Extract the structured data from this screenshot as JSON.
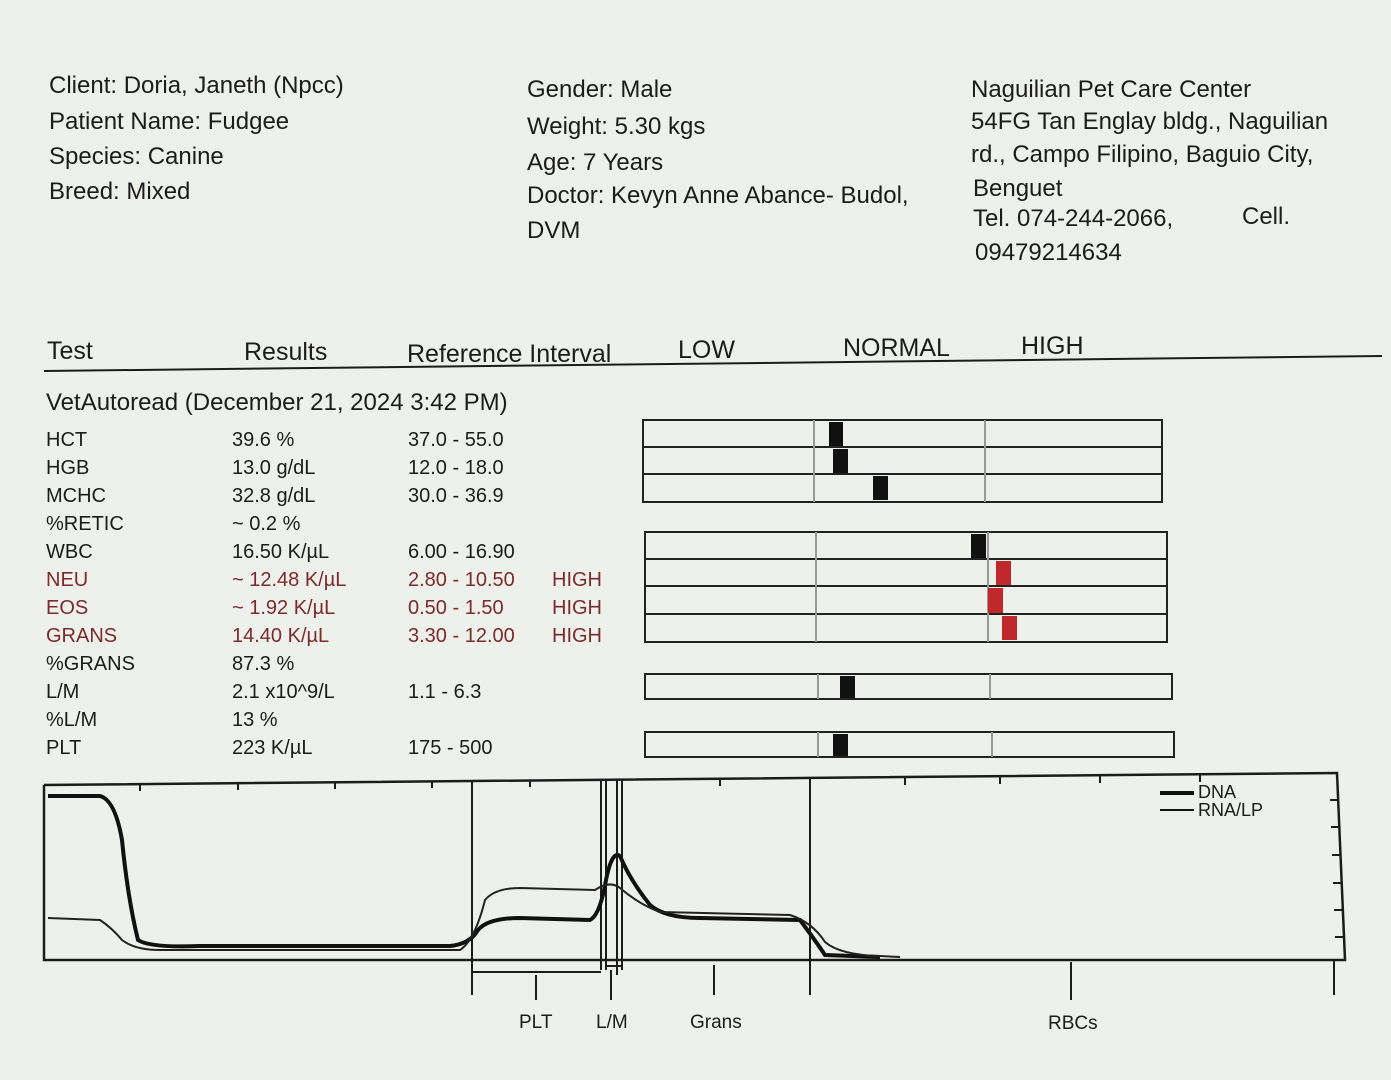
{
  "client": {
    "client": "Client: Doria, Janeth (Npcc)",
    "patient": "Patient Name: Fudgee",
    "species": "Species: Canine",
    "breed": "Breed: Mixed"
  },
  "patient_info": {
    "gender": "Gender: Male",
    "weight": "Weight: 5.30 kgs",
    "age": "Age: 7 Years",
    "doctor": "Doctor: Kevyn Anne Abance- Budol,",
    "doctor_suffix": "DVM"
  },
  "clinic": {
    "name": "Naguilian Pet Care Center",
    "address1": "54FG Tan Englay bldg., Naguilian",
    "address2": "rd., Campo Filipino, Baguio City,",
    "address3": "Benguet",
    "tel": "Tel. 074-244-2066,",
    "cell_label": "Cell.",
    "cell": "09479214634"
  },
  "table_header": {
    "test": "Test",
    "results": "Results",
    "reference": "Reference Interval",
    "low": "LOW",
    "normal": "NORMAL",
    "high": "HIGH"
  },
  "run_title": "VetAutoread (December 21, 2024 3:42 PM)",
  "rows": [
    {
      "test": "HCT",
      "result": "39.6 %",
      "ref": "37.0 - 55.0",
      "flag": ""
    },
    {
      "test": "HGB",
      "result": "13.0 g/dL",
      "ref": "12.0 - 18.0",
      "flag": ""
    },
    {
      "test": "MCHC",
      "result": "32.8 g/dL",
      "ref": "30.0 - 36.9",
      "flag": ""
    },
    {
      "test": "%RETIC",
      "result": "~ 0.2 %",
      "ref": "",
      "flag": ""
    },
    {
      "test": "WBC",
      "result": "16.50 K/µL",
      "ref": "6.00 - 16.90",
      "flag": ""
    },
    {
      "test": "NEU",
      "result": "~ 12.48 K/µL",
      "ref": "2.80 - 10.50",
      "flag": "HIGH"
    },
    {
      "test": "EOS",
      "result": "~ 1.92 K/µL",
      "ref": "0.50 - 1.50",
      "flag": "HIGH"
    },
    {
      "test": "GRANS",
      "result": "14.40 K/µL",
      "ref": "3.30 - 12.00",
      "flag": "HIGH"
    },
    {
      "test": "%GRANS",
      "result": "87.3 %",
      "ref": "",
      "flag": ""
    },
    {
      "test": "L/M",
      "result": "2.1 x10^9/L",
      "ref": "1.1 - 6.3",
      "flag": ""
    },
    {
      "test": "%L/M",
      "result": "13 %",
      "ref": "",
      "flag": ""
    },
    {
      "test": "PLT",
      "result": "223 K/µL",
      "ref": "175 - 500",
      "flag": ""
    }
  ],
  "graph": {
    "legend": [
      "DNA",
      "RNA/LP"
    ],
    "zone_labels": [
      "PLT",
      "L/M",
      "Grans",
      "RBCs"
    ]
  },
  "colors": {
    "paper": "#eef0ec",
    "ink": "#1c1c1c",
    "abnormal_text": "#7a2b2b",
    "high_marker": "#c0282b",
    "normal_marker": "#111111"
  }
}
